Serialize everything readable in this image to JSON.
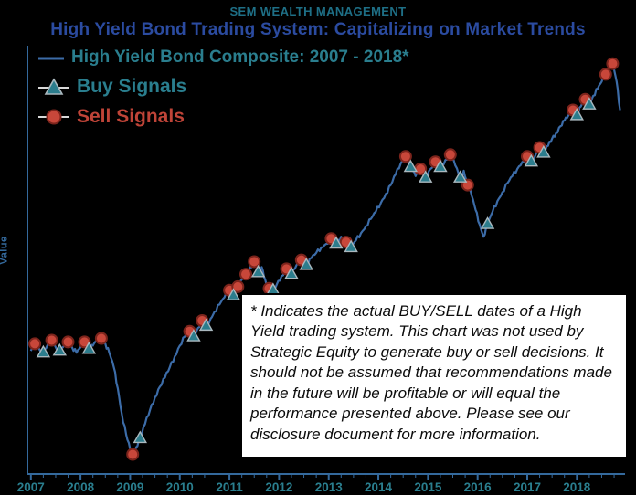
{
  "header": {
    "company": "SEM WEALTH MANAGEMENT",
    "title": "High Yield Bond Trading System: Capitalizing on Market Trends"
  },
  "disclaimer": {
    "text": "* Indicates the actual BUY/SELL dates of a High Yield trading system.  This chart was not used by Strategic Equity to generate buy or sell decisions. It should not be assumed that recommendations made in the future will be profitable or will equal the performance presented above.  Please see our disclosure document for more information."
  },
  "colors": {
    "background": "#000000",
    "header_teal": "#1e6f86",
    "title_blue": "#2b4ba0",
    "teal": "#2a7e8e",
    "red": "#bf4438",
    "line_blue": "#3c6ca8",
    "axis_blue": "#34699c",
    "marker_sell_fill": "#c8473a",
    "marker_sell_edge": "#7c241c",
    "marker_buy_fill": "#2c7d8d",
    "marker_buy_edge": "#aab8be",
    "legend_line_gray": "#d8d8d8",
    "disclaimer_bg": "#ffffff",
    "disclaimer_text": "#0b0b0b"
  },
  "chart_data": {
    "type": "line",
    "title": "High Yield Bond Trading System: Capitalizing on Market Trends",
    "xlabel": "",
    "ylabel": "Value",
    "grid": false,
    "legend_position": "top-left",
    "xlim": [
      2006.93,
      2018.97
    ],
    "ylim": [
      58,
      176
    ],
    "xticks": [
      2007,
      2008,
      2009,
      2010,
      2011,
      2012,
      2013,
      2014,
      2015,
      2016,
      2017,
      2018
    ],
    "series": [
      {
        "name": "High Yield Bond Composite: 2007 - 2018*",
        "type": "line",
        "points": [
          [
            2007.0,
            92.5
          ],
          [
            2007.08,
            94.5
          ],
          [
            2007.17,
            93
          ],
          [
            2007.25,
            92
          ],
          [
            2007.33,
            94
          ],
          [
            2007.42,
            95.5
          ],
          [
            2007.5,
            93.5
          ],
          [
            2007.58,
            92.5
          ],
          [
            2007.67,
            94
          ],
          [
            2007.75,
            95
          ],
          [
            2007.83,
            93.5
          ],
          [
            2007.92,
            92
          ],
          [
            2008.0,
            93.5
          ],
          [
            2008.08,
            95
          ],
          [
            2008.17,
            93
          ],
          [
            2008.25,
            94
          ],
          [
            2008.33,
            95.5
          ],
          [
            2008.42,
            96
          ],
          [
            2008.5,
            94.5
          ],
          [
            2008.58,
            92
          ],
          [
            2008.67,
            88
          ],
          [
            2008.75,
            82
          ],
          [
            2008.83,
            75
          ],
          [
            2008.92,
            69
          ],
          [
            2009.0,
            65
          ],
          [
            2009.05,
            63.5
          ],
          [
            2009.12,
            65.5
          ],
          [
            2009.2,
            68
          ],
          [
            2009.3,
            72
          ],
          [
            2009.4,
            76
          ],
          [
            2009.5,
            79.5
          ],
          [
            2009.6,
            82.5
          ],
          [
            2009.7,
            85
          ],
          [
            2009.8,
            88
          ],
          [
            2009.9,
            91
          ],
          [
            2010.0,
            94
          ],
          [
            2010.1,
            96.5
          ],
          [
            2010.2,
            98
          ],
          [
            2010.28,
            96.5
          ],
          [
            2010.37,
            99
          ],
          [
            2010.45,
            101
          ],
          [
            2010.53,
            99.5
          ],
          [
            2010.62,
            101.5
          ],
          [
            2010.7,
            103.5
          ],
          [
            2010.8,
            105.5
          ],
          [
            2010.9,
            107.5
          ],
          [
            2011.0,
            109.5
          ],
          [
            2011.08,
            108
          ],
          [
            2011.17,
            110.5
          ],
          [
            2011.25,
            112.5
          ],
          [
            2011.33,
            114
          ],
          [
            2011.42,
            116
          ],
          [
            2011.5,
            117.5
          ],
          [
            2011.58,
            114.5
          ],
          [
            2011.65,
            116
          ],
          [
            2011.72,
            112.5
          ],
          [
            2011.8,
            110
          ],
          [
            2011.88,
            109.5
          ],
          [
            2011.95,
            111
          ],
          [
            2012.05,
            113.5
          ],
          [
            2012.15,
            115.5
          ],
          [
            2012.25,
            114
          ],
          [
            2012.35,
            116.5
          ],
          [
            2012.45,
            118
          ],
          [
            2012.55,
            116.5
          ],
          [
            2012.65,
            118.5
          ],
          [
            2012.75,
            120
          ],
          [
            2012.85,
            121.5
          ],
          [
            2012.95,
            122.5
          ],
          [
            2013.05,
            124
          ],
          [
            2013.15,
            122.5
          ],
          [
            2013.25,
            124.5
          ],
          [
            2013.35,
            123
          ],
          [
            2013.45,
            121.5
          ],
          [
            2013.55,
            123.5
          ],
          [
            2013.65,
            125.5
          ],
          [
            2013.75,
            127.5
          ],
          [
            2013.85,
            129.5
          ],
          [
            2013.95,
            131.5
          ],
          [
            2014.05,
            134
          ],
          [
            2014.15,
            136.5
          ],
          [
            2014.25,
            139
          ],
          [
            2014.35,
            142
          ],
          [
            2014.45,
            145
          ],
          [
            2014.55,
            147
          ],
          [
            2014.65,
            144
          ],
          [
            2014.75,
            141.5
          ],
          [
            2014.85,
            143.5
          ],
          [
            2014.95,
            141
          ],
          [
            2015.05,
            143.5
          ],
          [
            2015.15,
            145.5
          ],
          [
            2015.25,
            144
          ],
          [
            2015.35,
            146
          ],
          [
            2015.45,
            147.5
          ],
          [
            2015.55,
            144.5
          ],
          [
            2015.65,
            141
          ],
          [
            2015.72,
            143
          ],
          [
            2015.8,
            139
          ],
          [
            2015.88,
            136
          ],
          [
            2015.96,
            132
          ],
          [
            2016.04,
            128
          ],
          [
            2016.12,
            124.5
          ],
          [
            2016.2,
            128
          ],
          [
            2016.3,
            131.5
          ],
          [
            2016.4,
            134.5
          ],
          [
            2016.5,
            137
          ],
          [
            2016.6,
            139.5
          ],
          [
            2016.7,
            141.5
          ],
          [
            2016.8,
            143.5
          ],
          [
            2016.9,
            145.5
          ],
          [
            2017.0,
            147
          ],
          [
            2017.08,
            145.5
          ],
          [
            2017.17,
            147.5
          ],
          [
            2017.25,
            149.5
          ],
          [
            2017.33,
            148
          ],
          [
            2017.42,
            150
          ],
          [
            2017.5,
            152
          ],
          [
            2017.58,
            153.5
          ],
          [
            2017.67,
            155.5
          ],
          [
            2017.75,
            157
          ],
          [
            2017.83,
            158.5
          ],
          [
            2017.92,
            160
          ],
          [
            2018.0,
            158.5
          ],
          [
            2018.08,
            161
          ],
          [
            2018.17,
            163
          ],
          [
            2018.25,
            161.5
          ],
          [
            2018.33,
            164
          ],
          [
            2018.42,
            166
          ],
          [
            2018.5,
            168
          ],
          [
            2018.58,
            170
          ],
          [
            2018.65,
            172
          ],
          [
            2018.72,
            173
          ],
          [
            2018.8,
            168
          ],
          [
            2018.87,
            160
          ]
        ]
      },
      {
        "name": "Buy Signals",
        "type": "scatter",
        "marker": "triangle-up",
        "points": [
          [
            2007.25,
            92
          ],
          [
            2007.58,
            92.5
          ],
          [
            2008.17,
            93
          ],
          [
            2009.2,
            68
          ],
          [
            2010.28,
            96.5
          ],
          [
            2010.53,
            99.5
          ],
          [
            2011.08,
            108
          ],
          [
            2011.58,
            114.5
          ],
          [
            2011.88,
            109.5
          ],
          [
            2012.25,
            114
          ],
          [
            2012.55,
            116.5
          ],
          [
            2013.15,
            122.5
          ],
          [
            2013.45,
            121.5
          ],
          [
            2014.65,
            144
          ],
          [
            2014.95,
            141
          ],
          [
            2015.25,
            144
          ],
          [
            2015.65,
            141
          ],
          [
            2016.2,
            128
          ],
          [
            2017.08,
            145.5
          ],
          [
            2017.33,
            148
          ],
          [
            2018.0,
            158.5
          ],
          [
            2018.25,
            161.5
          ]
        ]
      },
      {
        "name": "Sell Signals",
        "type": "scatter",
        "marker": "circle",
        "points": [
          [
            2007.08,
            94.5
          ],
          [
            2007.42,
            95.5
          ],
          [
            2007.75,
            95
          ],
          [
            2008.08,
            95
          ],
          [
            2008.42,
            96
          ],
          [
            2009.05,
            63.5
          ],
          [
            2010.2,
            98
          ],
          [
            2010.45,
            101
          ],
          [
            2011.0,
            109.5
          ],
          [
            2011.17,
            110.5
          ],
          [
            2011.33,
            114
          ],
          [
            2011.5,
            117.5
          ],
          [
            2011.8,
            110
          ],
          [
            2012.15,
            115.5
          ],
          [
            2012.45,
            118
          ],
          [
            2013.05,
            124
          ],
          [
            2013.35,
            123
          ],
          [
            2014.55,
            147
          ],
          [
            2014.85,
            143.5
          ],
          [
            2015.15,
            145.5
          ],
          [
            2015.45,
            147.5
          ],
          [
            2015.8,
            139
          ],
          [
            2017.0,
            147
          ],
          [
            2017.25,
            149.5
          ],
          [
            2017.92,
            160
          ],
          [
            2018.17,
            163
          ],
          [
            2018.58,
            170
          ],
          [
            2018.72,
            173
          ]
        ]
      }
    ]
  }
}
